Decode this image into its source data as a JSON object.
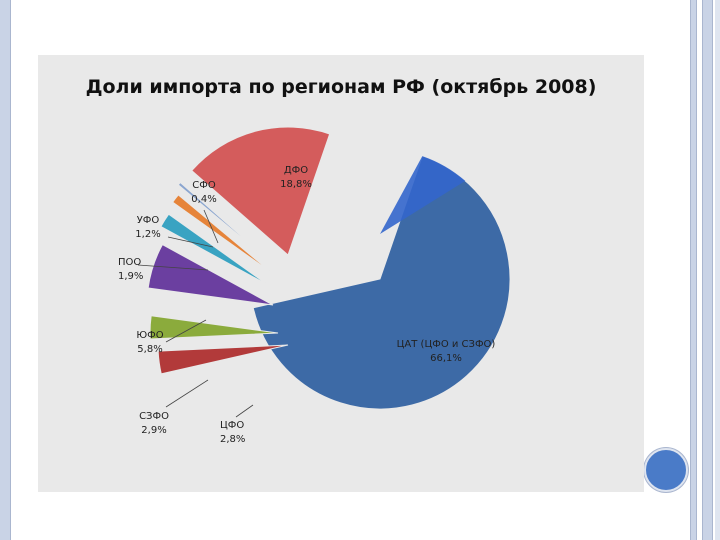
{
  "chart_data": {
    "type": "pie",
    "title": "Доли импорта по регионам РФ (октябрь 2008)",
    "slices": [
      {
        "name": "ЦАТ (ЦФО и СЗФО)",
        "value_label": "66,1%",
        "value": 66.1,
        "color": "#3d6aa6",
        "exploded": false
      },
      {
        "name": "ЦФО",
        "value_label": "2,8%",
        "value": 2.8,
        "color": "#b23a3a",
        "exploded": true
      },
      {
        "name": "СЗФО",
        "value_label": "2,9%",
        "value": 2.9,
        "color": "#8bab3c",
        "exploded": true
      },
      {
        "name": "ЮФО",
        "value_label": "5,8%",
        "value": 5.8,
        "color": "#6b3fa0",
        "exploded": true
      },
      {
        "name": "ПОО",
        "value_label": "1,9%",
        "value": 1.9,
        "color": "#39a3c2",
        "exploded": true
      },
      {
        "name": "УФО",
        "value_label": "1,2%",
        "value": 1.2,
        "color": "#e6843a",
        "exploded": true
      },
      {
        "name": "СФО",
        "value_label": "0,4%",
        "value": 0.4,
        "color": "#8aa5cf",
        "exploded": true
      },
      {
        "name": "ДФО",
        "value_label": "18,8%",
        "value": 18.8,
        "color": "#d45c5c",
        "exploded": true
      }
    ],
    "highlight_color": "#3366cc"
  }
}
